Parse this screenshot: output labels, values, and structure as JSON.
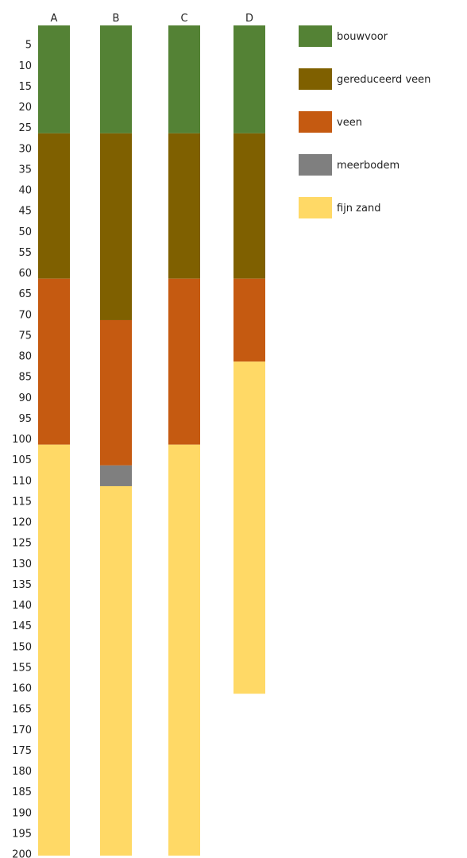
{
  "chart_data": {
    "type": "bar",
    "orientation": "vertical-stacked-depth",
    "categories": [
      "A",
      "B",
      "C",
      "D"
    ],
    "y_ticks": [
      5,
      10,
      15,
      20,
      25,
      30,
      35,
      40,
      45,
      50,
      55,
      60,
      65,
      70,
      75,
      80,
      85,
      90,
      95,
      100,
      105,
      110,
      115,
      120,
      125,
      130,
      135,
      140,
      145,
      150,
      155,
      160,
      165,
      170,
      175,
      180,
      185,
      190,
      195,
      200
    ],
    "ylim": [
      0,
      200
    ],
    "y_inverted": true,
    "grid": false,
    "legend_position": "top-right",
    "layers": [
      {
        "name": "bouwvoor",
        "color": "#548235"
      },
      {
        "name": "gereduceerd veen",
        "color": "#7F6000"
      },
      {
        "name": "veen",
        "color": "#C55A11"
      },
      {
        "name": "meerbodem",
        "color": "#7F7F7F"
      },
      {
        "name": "fijn zand",
        "color": "#FFD966"
      }
    ],
    "columns": [
      {
        "category": "A",
        "segments": [
          {
            "layer": "bouwvoor",
            "top": 0,
            "bottom": 26
          },
          {
            "layer": "gereduceerd veen",
            "top": 26,
            "bottom": 61
          },
          {
            "layer": "veen",
            "top": 61,
            "bottom": 101
          },
          {
            "layer": "fijn zand",
            "top": 101,
            "bottom": 200
          }
        ]
      },
      {
        "category": "B",
        "segments": [
          {
            "layer": "bouwvoor",
            "top": 0,
            "bottom": 26
          },
          {
            "layer": "gereduceerd veen",
            "top": 26,
            "bottom": 71
          },
          {
            "layer": "veen",
            "top": 71,
            "bottom": 106
          },
          {
            "layer": "meerbodem",
            "top": 106,
            "bottom": 111
          },
          {
            "layer": "fijn zand",
            "top": 111,
            "bottom": 200
          }
        ]
      },
      {
        "category": "C",
        "segments": [
          {
            "layer": "bouwvoor",
            "top": 0,
            "bottom": 26
          },
          {
            "layer": "gereduceerd veen",
            "top": 26,
            "bottom": 61
          },
          {
            "layer": "veen",
            "top": 61,
            "bottom": 101
          },
          {
            "layer": "fijn zand",
            "top": 101,
            "bottom": 200
          }
        ]
      },
      {
        "category": "D",
        "segments": [
          {
            "layer": "bouwvoor",
            "top": 0,
            "bottom": 26
          },
          {
            "layer": "gereduceerd veen",
            "top": 26,
            "bottom": 61
          },
          {
            "layer": "veen",
            "top": 61,
            "bottom": 81
          },
          {
            "layer": "fijn zand",
            "top": 81,
            "bottom": 161
          }
        ]
      }
    ]
  }
}
